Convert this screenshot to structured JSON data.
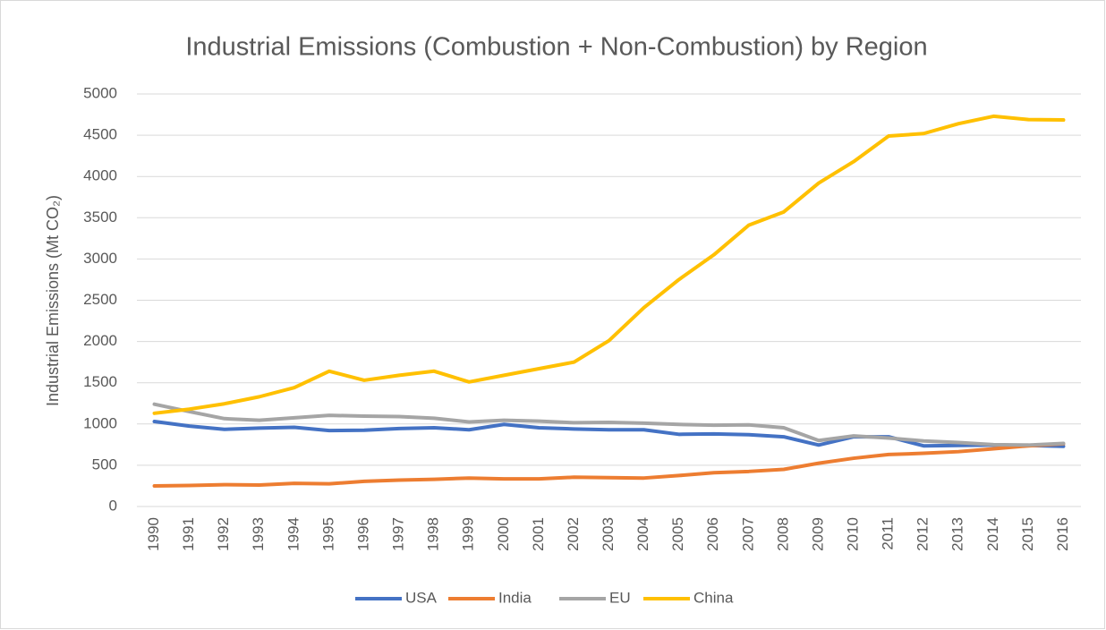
{
  "chart_data": {
    "type": "line",
    "title": "Industrial Emissions (Combustion + Non-Combustion) by Region",
    "y_label": "Industrial Emissions (Mt CO₂)",
    "categories": [
      "1990",
      "1991",
      "1992",
      "1993",
      "1994",
      "1995",
      "1996",
      "1997",
      "1998",
      "1999",
      "2000",
      "2001",
      "2002",
      "2003",
      "2004",
      "2005",
      "2006",
      "2007",
      "2008",
      "2009",
      "2010",
      "2011",
      "2012",
      "2013",
      "2014",
      "2015",
      "2016"
    ],
    "series": [
      {
        "name": "USA",
        "color": "#4472c4",
        "values": [
          1030,
          975,
          935,
          950,
          960,
          920,
          925,
          945,
          955,
          930,
          995,
          955,
          940,
          930,
          930,
          875,
          880,
          870,
          845,
          745,
          845,
          845,
          735,
          740,
          745,
          740,
          730
        ]
      },
      {
        "name": "India",
        "color": "#ed7d31",
        "values": [
          250,
          255,
          265,
          260,
          280,
          275,
          305,
          320,
          330,
          345,
          335,
          335,
          355,
          350,
          345,
          375,
          410,
          425,
          450,
          525,
          585,
          630,
          645,
          665,
          700,
          735,
          760
        ]
      },
      {
        "name": "EU",
        "color": "#a5a5a5",
        "values": [
          1240,
          1150,
          1065,
          1045,
          1075,
          1105,
          1095,
          1090,
          1070,
          1025,
          1045,
          1035,
          1015,
          1020,
          1010,
          995,
          985,
          990,
          955,
          800,
          855,
          830,
          795,
          775,
          750,
          745,
          765
        ]
      },
      {
        "name": "China",
        "color": "#ffc000",
        "values": [
          1130,
          1180,
          1245,
          1330,
          1440,
          1640,
          1530,
          1590,
          1640,
          1510,
          1590,
          1670,
          1750,
          2010,
          2410,
          2750,
          3050,
          3410,
          3570,
          3920,
          4180,
          4490,
          4520,
          4640,
          4730,
          4690,
          4685
        ]
      }
    ],
    "ylim": [
      0,
      5000
    ],
    "yticks": [
      0,
      500,
      1000,
      1500,
      2000,
      2500,
      3000,
      3500,
      4000,
      4500,
      5000
    ],
    "grid": true,
    "legend": "bottom"
  }
}
